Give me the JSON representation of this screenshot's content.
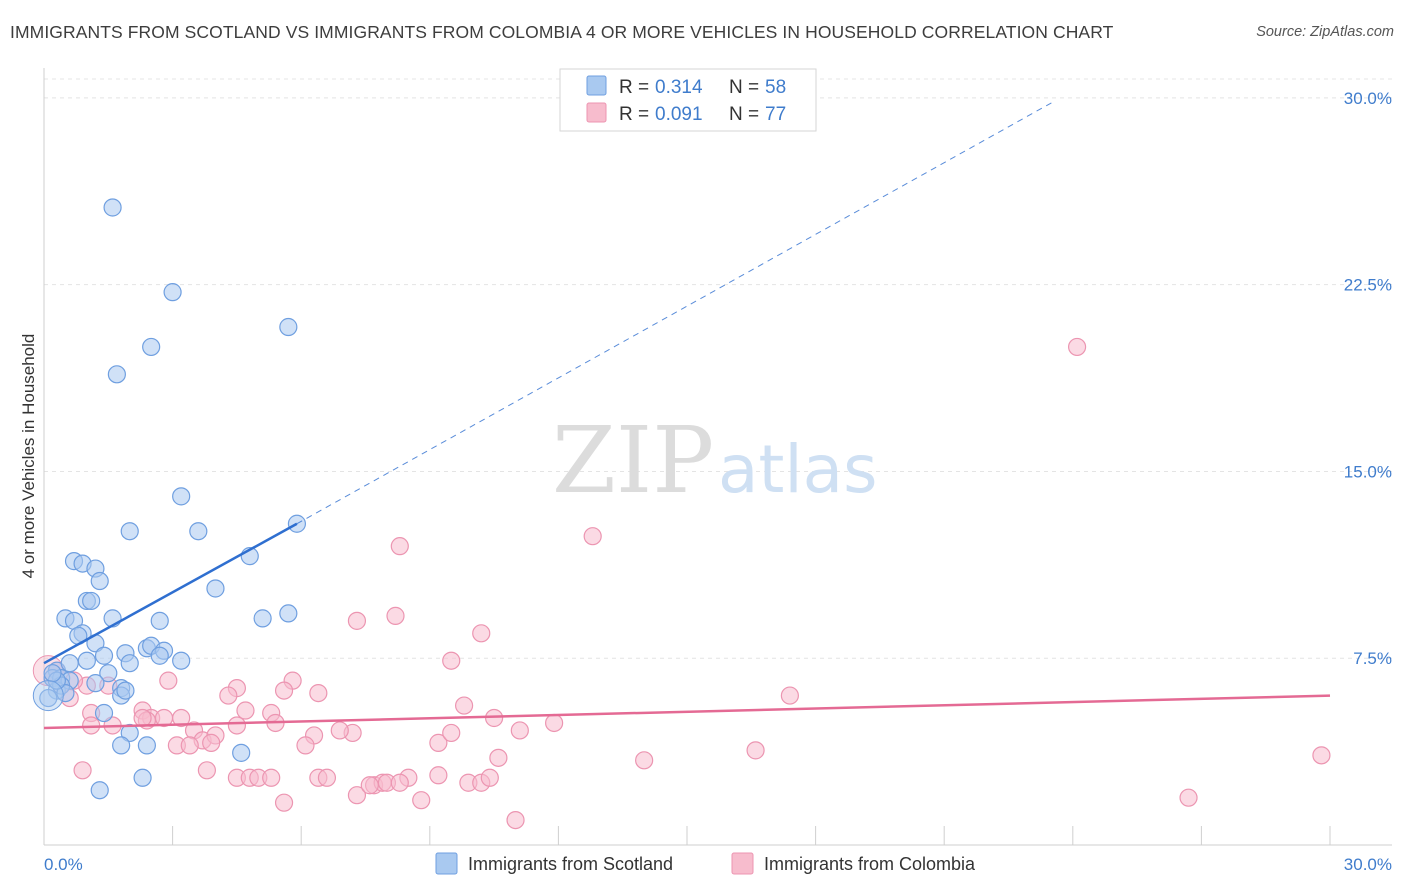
{
  "header": {
    "title": "IMMIGRANTS FROM SCOTLAND VS IMMIGRANTS FROM COLOMBIA 4 OR MORE VEHICLES IN HOUSEHOLD CORRELATION CHART",
    "source": "Source: ZipAtlas.com"
  },
  "watermark": {
    "zip": "ZIP",
    "atlas": "atlas"
  },
  "legend": {
    "r_label": "R =",
    "n_label": "N =",
    "scotland": {
      "r": "0.314",
      "n": "58"
    },
    "colombia": {
      "r": "0.091",
      "n": "77"
    }
  },
  "colors": {
    "scotland_fill": "#a9c9f0",
    "scotland_stroke": "#6f9fe0",
    "scotland_line": "#2f6fd0",
    "colombia_fill": "#f7bccd",
    "colombia_stroke": "#ec95b1",
    "colombia_line": "#e46a94",
    "tick_text": "#3f7ccc",
    "grid": "#e4e4e4"
  },
  "chart_data": {
    "type": "scatter",
    "title": "IMMIGRANTS FROM SCOTLAND VS IMMIGRANTS FROM COLOMBIA 4 OR MORE VEHICLES IN HOUSEHOLD CORRELATION CHART",
    "xlabel": "",
    "ylabel": "4 or more Vehicles in Household",
    "xlim": [
      0,
      30
    ],
    "ylim": [
      0,
      31
    ],
    "x_tick_labels": [
      "0.0%",
      "30.0%"
    ],
    "y_ticks": [
      7.5,
      15.0,
      22.5,
      30.0
    ],
    "y_tick_labels": [
      "7.5%",
      "15.0%",
      "22.5%",
      "30.0%"
    ],
    "grid": true,
    "legend_position": "top-center",
    "series": [
      {
        "name": "Immigrants from Scotland",
        "R": 0.314,
        "N": 58,
        "trend": {
          "x_start": 0.0,
          "y_start": 7.3,
          "x_solid_end": 5.9,
          "y_solid_end": 12.9,
          "x_dash_end": 23.5,
          "y_dash_end": 29.8
        },
        "points": [
          [
            1.6,
            25.6
          ],
          [
            3.0,
            22.2
          ],
          [
            5.7,
            20.8
          ],
          [
            2.5,
            20.0
          ],
          [
            1.7,
            18.9
          ],
          [
            3.2,
            14.0
          ],
          [
            2.0,
            12.6
          ],
          [
            3.6,
            12.6
          ],
          [
            5.9,
            12.9
          ],
          [
            4.8,
            11.6
          ],
          [
            0.7,
            11.4
          ],
          [
            0.9,
            11.3
          ],
          [
            1.2,
            11.1
          ],
          [
            1.3,
            10.6
          ],
          [
            4.0,
            10.3
          ],
          [
            1.0,
            9.8
          ],
          [
            1.1,
            9.8
          ],
          [
            0.5,
            9.1
          ],
          [
            0.7,
            9.0
          ],
          [
            1.6,
            9.1
          ],
          [
            2.7,
            9.0
          ],
          [
            5.1,
            9.1
          ],
          [
            5.7,
            9.3
          ],
          [
            0.9,
            8.5
          ],
          [
            0.8,
            8.4
          ],
          [
            1.2,
            8.1
          ],
          [
            1.9,
            7.7
          ],
          [
            2.4,
            7.9
          ],
          [
            2.5,
            8.0
          ],
          [
            2.8,
            7.8
          ],
          [
            1.4,
            7.6
          ],
          [
            0.3,
            7.0
          ],
          [
            0.6,
            7.3
          ],
          [
            1.0,
            7.4
          ],
          [
            3.2,
            7.4
          ],
          [
            2.0,
            7.3
          ],
          [
            2.7,
            7.6
          ],
          [
            1.5,
            6.9
          ],
          [
            0.2,
            6.7
          ],
          [
            0.4,
            6.7
          ],
          [
            0.6,
            6.6
          ],
          [
            1.2,
            6.5
          ],
          [
            1.8,
            6.3
          ],
          [
            0.3,
            6.2
          ],
          [
            0.4,
            6.4
          ],
          [
            0.5,
            6.1
          ],
          [
            1.8,
            6.0
          ],
          [
            1.9,
            6.2
          ],
          [
            0.3,
            6.6
          ],
          [
            1.4,
            5.3
          ],
          [
            2.0,
            4.5
          ],
          [
            2.4,
            4.0
          ],
          [
            1.8,
            4.0
          ],
          [
            4.6,
            3.7
          ],
          [
            2.3,
            2.7
          ],
          [
            1.3,
            2.2
          ],
          [
            0.1,
            5.9
          ],
          [
            0.2,
            6.9
          ]
        ]
      },
      {
        "name": "Immigrants from Colombia",
        "R": 0.091,
        "N": 77,
        "trend": {
          "x_start": 0.0,
          "y_start": 4.7,
          "x_end": 30.0,
          "y_end": 6.0
        },
        "points": [
          [
            24.1,
            20.0
          ],
          [
            12.8,
            12.4
          ],
          [
            8.3,
            12.0
          ],
          [
            10.2,
            8.5
          ],
          [
            8.2,
            9.2
          ],
          [
            7.3,
            9.0
          ],
          [
            9.5,
            7.4
          ],
          [
            5.8,
            6.6
          ],
          [
            6.4,
            6.1
          ],
          [
            4.5,
            6.3
          ],
          [
            2.9,
            6.6
          ],
          [
            1.0,
            6.4
          ],
          [
            0.6,
            5.9
          ],
          [
            0.3,
            7.0
          ],
          [
            4.3,
            6.0
          ],
          [
            5.6,
            6.2
          ],
          [
            17.4,
            6.0
          ],
          [
            1.1,
            5.3
          ],
          [
            2.3,
            5.4
          ],
          [
            4.7,
            5.4
          ],
          [
            5.3,
            5.3
          ],
          [
            9.8,
            5.6
          ],
          [
            10.5,
            5.1
          ],
          [
            2.5,
            5.1
          ],
          [
            2.8,
            5.1
          ],
          [
            3.2,
            5.1
          ],
          [
            2.4,
            5.0
          ],
          [
            1.1,
            4.8
          ],
          [
            1.6,
            4.8
          ],
          [
            3.5,
            4.6
          ],
          [
            4.5,
            4.8
          ],
          [
            5.4,
            4.9
          ],
          [
            6.3,
            4.4
          ],
          [
            7.2,
            4.5
          ],
          [
            11.1,
            4.6
          ],
          [
            11.9,
            4.9
          ],
          [
            3.7,
            4.2
          ],
          [
            4.0,
            4.4
          ],
          [
            3.1,
            4.0
          ],
          [
            3.4,
            4.0
          ],
          [
            3.9,
            4.1
          ],
          [
            6.1,
            4.0
          ],
          [
            9.2,
            4.1
          ],
          [
            9.5,
            4.5
          ],
          [
            10.6,
            3.5
          ],
          [
            14.0,
            3.4
          ],
          [
            16.6,
            3.8
          ],
          [
            29.8,
            3.6
          ],
          [
            0.9,
            3.0
          ],
          [
            3.8,
            3.0
          ],
          [
            4.5,
            2.7
          ],
          [
            4.8,
            2.7
          ],
          [
            5.0,
            2.7
          ],
          [
            5.3,
            2.7
          ],
          [
            6.4,
            2.7
          ],
          [
            6.6,
            2.7
          ],
          [
            7.7,
            2.4
          ],
          [
            7.9,
            2.5
          ],
          [
            8.0,
            2.5
          ],
          [
            8.5,
            2.7
          ],
          [
            9.2,
            2.8
          ],
          [
            9.9,
            2.5
          ],
          [
            10.2,
            2.5
          ],
          [
            10.4,
            2.7
          ],
          [
            7.3,
            2.0
          ],
          [
            8.8,
            1.8
          ],
          [
            5.6,
            1.7
          ],
          [
            11.0,
            1.0
          ],
          [
            26.7,
            1.9
          ],
          [
            0.2,
            6.7
          ],
          [
            0.4,
            6.4
          ],
          [
            0.7,
            6.6
          ],
          [
            1.5,
            6.4
          ],
          [
            6.9,
            4.6
          ],
          [
            7.6,
            2.4
          ],
          [
            8.3,
            2.5
          ],
          [
            2.3,
            5.1
          ]
        ]
      }
    ]
  },
  "bottom_legend": {
    "scotland": "Immigrants from Scotland",
    "colombia": "Immigrants from Colombia"
  }
}
